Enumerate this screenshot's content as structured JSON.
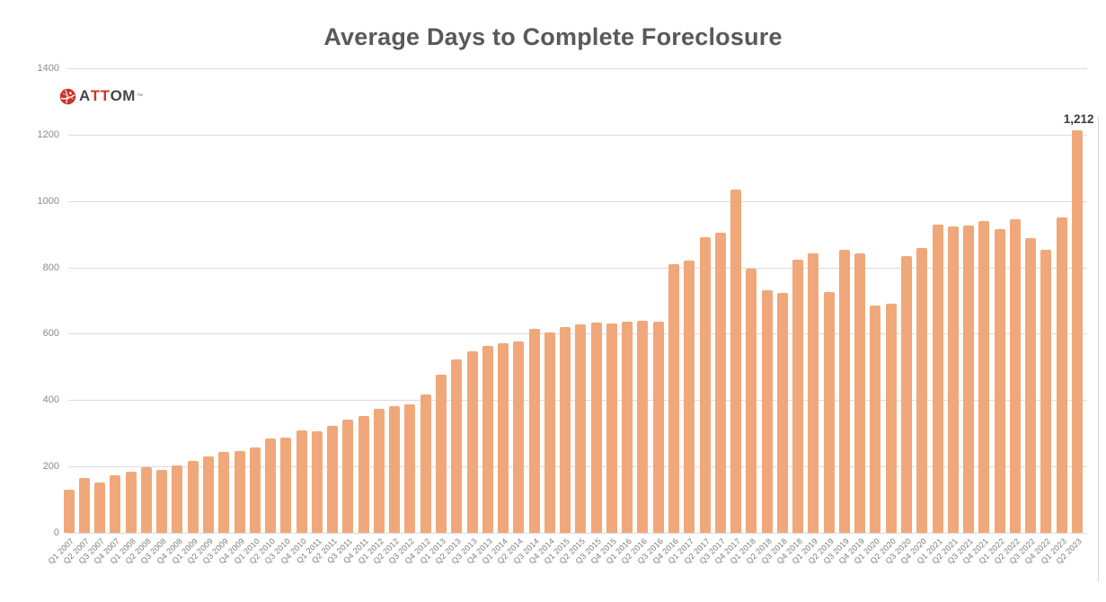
{
  "header": {
    "title": "Average Days to Complete Foreclosure"
  },
  "brand": {
    "name": "ATTOM",
    "segments": [
      {
        "text": "A",
        "color": "#45454e"
      },
      {
        "text": "TT",
        "color": "#d0342c"
      },
      {
        "text": "OM",
        "color": "#45454e"
      }
    ],
    "tm": "™",
    "icon": "attom-globe-icon",
    "icon_color": "#c8332b"
  },
  "chart_data": {
    "type": "bar",
    "title": "Average Days to Complete Foreclosure",
    "xlabel": "",
    "ylabel": "",
    "ylim": [
      0,
      1400
    ],
    "y_ticks": [
      0,
      200,
      400,
      600,
      800,
      1000,
      1200,
      1400
    ],
    "grid": true,
    "legend": "none",
    "bar_color": "#f0a87a",
    "categories": [
      "Q1 2007",
      "Q2 2007",
      "Q3 2007",
      "Q4 2007",
      "Q1 2008",
      "Q2 2008",
      "Q3 2008",
      "Q4 2008",
      "Q1 2009",
      "Q2 2009",
      "Q3 2009",
      "Q4 2009",
      "Q1 2010",
      "Q2 2010",
      "Q3 2010",
      "Q4 2010",
      "Q1 2011",
      "Q2 2011",
      "Q3 2011",
      "Q4 2011",
      "Q1 2012",
      "Q2 2012",
      "Q3 2012",
      "Q4 2012",
      "Q1 2013",
      "Q2 2013",
      "Q3 2013",
      "Q4 2013",
      "Q1 2014",
      "Q2 2014",
      "Q3 2014",
      "Q4 2014",
      "Q1 2015",
      "Q2 2015",
      "Q3 2015",
      "Q4 2015",
      "Q1 2016",
      "Q2 2016",
      "Q3 2016",
      "Q4 2016",
      "Q1 2017",
      "Q2 2017",
      "Q3 2017",
      "Q4 2017",
      "Q1 2018",
      "Q2 2018",
      "Q3 2018",
      "Q4 2018",
      "Q1 2019",
      "Q2 2019",
      "Q3 2019",
      "Q4 2019",
      "Q1 2020",
      "Q2 2020",
      "Q3 2020",
      "Q4 2020",
      "Q1 2021",
      "Q2 2021",
      "Q3 2021",
      "Q4 2021",
      "Q1 2022",
      "Q2 2022",
      "Q3 2022",
      "Q4 2022",
      "Q1 2023",
      "Q2 2023"
    ],
    "values": [
      131,
      164,
      151,
      173,
      184,
      199,
      190,
      202,
      217,
      231,
      245,
      247,
      256,
      284,
      287,
      309,
      305,
      322,
      341,
      352,
      373,
      382,
      386,
      418,
      477,
      524,
      547,
      564,
      572,
      578,
      615,
      604,
      621,
      629,
      634,
      631,
      637,
      640,
      637,
      810,
      820,
      890,
      905,
      1035,
      797,
      730,
      722,
      822,
      841,
      727,
      852,
      843,
      684,
      690,
      835,
      858,
      930,
      923,
      926,
      940,
      915,
      946,
      887,
      854,
      950,
      1212
    ],
    "annotation": {
      "text": "1,212",
      "category": "Q2 2023"
    }
  },
  "colors": {
    "title": "#595959",
    "grid": "#dcdcdc",
    "y_tick_text": "#8a8a8a",
    "x_tick_text": "#7a7a7a",
    "data_label": "#3b3b3b",
    "bar": "#f0a87a",
    "background": "#ffffff"
  }
}
